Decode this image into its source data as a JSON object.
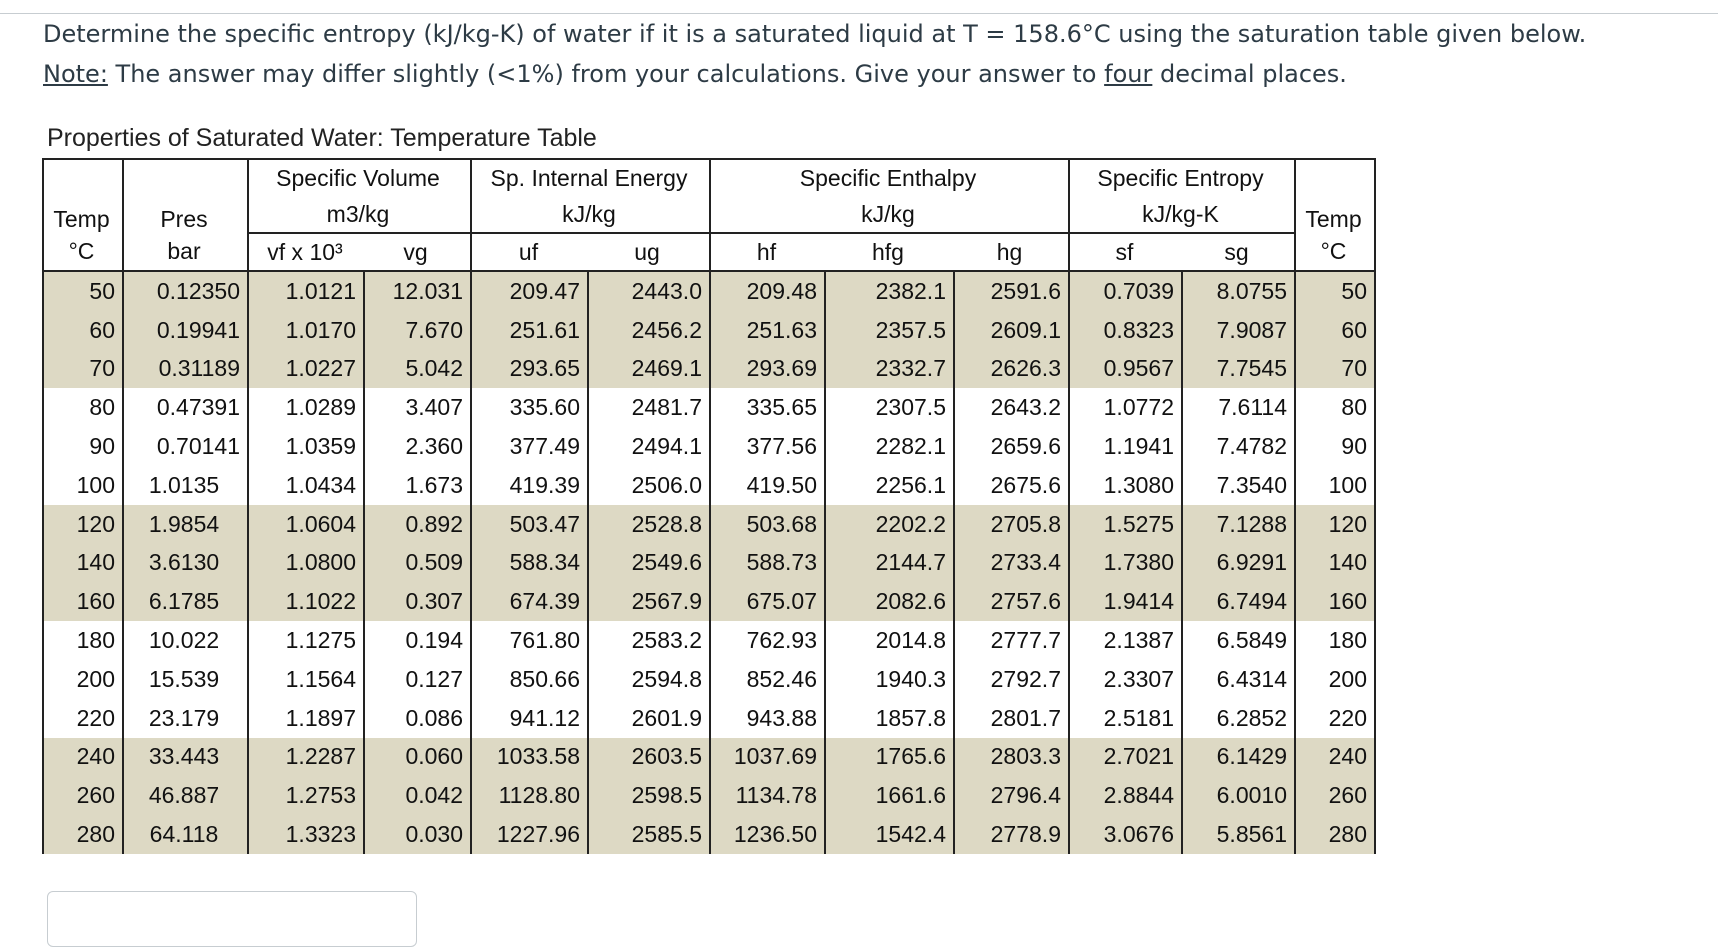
{
  "question": {
    "line1": "Determine the specific entropy (kJ/kg-K) of water if it is a saturated liquid at T = 158.6°C using the saturation table given below.",
    "note_label": "Note:",
    "line2_a": " The answer may differ slightly (<1%) from your calculations. Give your answer to ",
    "line2_emph": "four",
    "line2_b": " decimal places."
  },
  "table": {
    "caption": "Properties of Saturated Water: Temperature Table",
    "groups": {
      "specific_volume": "Specific Volume",
      "internal_energy": "Sp. Internal Energy",
      "enthalpy": "Specific Enthalpy",
      "entropy": "Specific Entropy"
    },
    "units": {
      "temp": "Temp",
      "pres": "Pres",
      "volume": "m3/kg",
      "energy": "kJ/kg",
      "enthalpy": "kJ/kg",
      "entropy": "kJ/kg-K",
      "temp_right": "Temp"
    },
    "sub": {
      "temp_unit": "°C",
      "pres_unit": "bar",
      "vf": "vf x 10³",
      "vg": "vg",
      "uf": "uf",
      "ug": "ug",
      "hf": "hf",
      "hfg": "hfg",
      "hg": "hg",
      "sf": "sf",
      "sg": "sg",
      "temp_unit_right": "°C"
    },
    "rows": [
      [
        "50",
        "0.12350",
        "1.0121",
        "12.031",
        "209.47",
        "2443.0",
        "209.48",
        "2382.1",
        "2591.6",
        "0.7039",
        "8.0755",
        "50"
      ],
      [
        "60",
        "0.19941",
        "1.0170",
        "7.670",
        "251.61",
        "2456.2",
        "251.63",
        "2357.5",
        "2609.1",
        "0.8323",
        "7.9087",
        "60"
      ],
      [
        "70",
        "0.31189",
        "1.0227",
        "5.042",
        "293.65",
        "2469.1",
        "293.69",
        "2332.7",
        "2626.3",
        "0.9567",
        "7.7545",
        "70"
      ],
      [
        "80",
        "0.47391",
        "1.0289",
        "3.407",
        "335.60",
        "2481.7",
        "335.65",
        "2307.5",
        "2643.2",
        "1.0772",
        "7.6114",
        "80"
      ],
      [
        "90",
        "0.70141",
        "1.0359",
        "2.360",
        "377.49",
        "2494.1",
        "377.56",
        "2282.1",
        "2659.6",
        "1.1941",
        "7.4782",
        "90"
      ],
      [
        "100",
        "1.0135",
        "1.0434",
        "1.673",
        "419.39",
        "2506.0",
        "419.50",
        "2256.1",
        "2675.6",
        "1.3080",
        "7.3540",
        "100"
      ],
      [
        "120",
        "1.9854",
        "1.0604",
        "0.892",
        "503.47",
        "2528.8",
        "503.68",
        "2202.2",
        "2705.8",
        "1.5275",
        "7.1288",
        "120"
      ],
      [
        "140",
        "3.6130",
        "1.0800",
        "0.509",
        "588.34",
        "2549.6",
        "588.73",
        "2144.7",
        "2733.4",
        "1.7380",
        "6.9291",
        "140"
      ],
      [
        "160",
        "6.1785",
        "1.1022",
        "0.307",
        "674.39",
        "2567.9",
        "675.07",
        "2082.6",
        "2757.6",
        "1.9414",
        "6.7494",
        "160"
      ],
      [
        "180",
        "10.022",
        "1.1275",
        "0.194",
        "761.80",
        "2583.2",
        "762.93",
        "2014.8",
        "2777.7",
        "2.1387",
        "6.5849",
        "180"
      ],
      [
        "200",
        "15.539",
        "1.1564",
        "0.127",
        "850.66",
        "2594.8",
        "852.46",
        "1940.3",
        "2792.7",
        "2.3307",
        "6.4314",
        "200"
      ],
      [
        "220",
        "23.179",
        "1.1897",
        "0.086",
        "941.12",
        "2601.9",
        "943.88",
        "1857.8",
        "2801.7",
        "2.5181",
        "6.2852",
        "220"
      ],
      [
        "240",
        "33.443",
        "1.2287",
        "0.060",
        "1033.58",
        "2603.5",
        "1037.69",
        "1765.6",
        "2803.3",
        "2.7021",
        "6.1429",
        "240"
      ],
      [
        "260",
        "46.887",
        "1.2753",
        "0.042",
        "1128.80",
        "2598.5",
        "1134.78",
        "1661.6",
        "2796.4",
        "2.8844",
        "6.0010",
        "260"
      ],
      [
        "280",
        "64.118",
        "1.3323",
        "0.030",
        "1227.96",
        "2585.5",
        "1236.50",
        "1542.4",
        "2778.9",
        "3.0676",
        "5.8561",
        "280"
      ]
    ]
  },
  "answer": {
    "value": ""
  }
}
